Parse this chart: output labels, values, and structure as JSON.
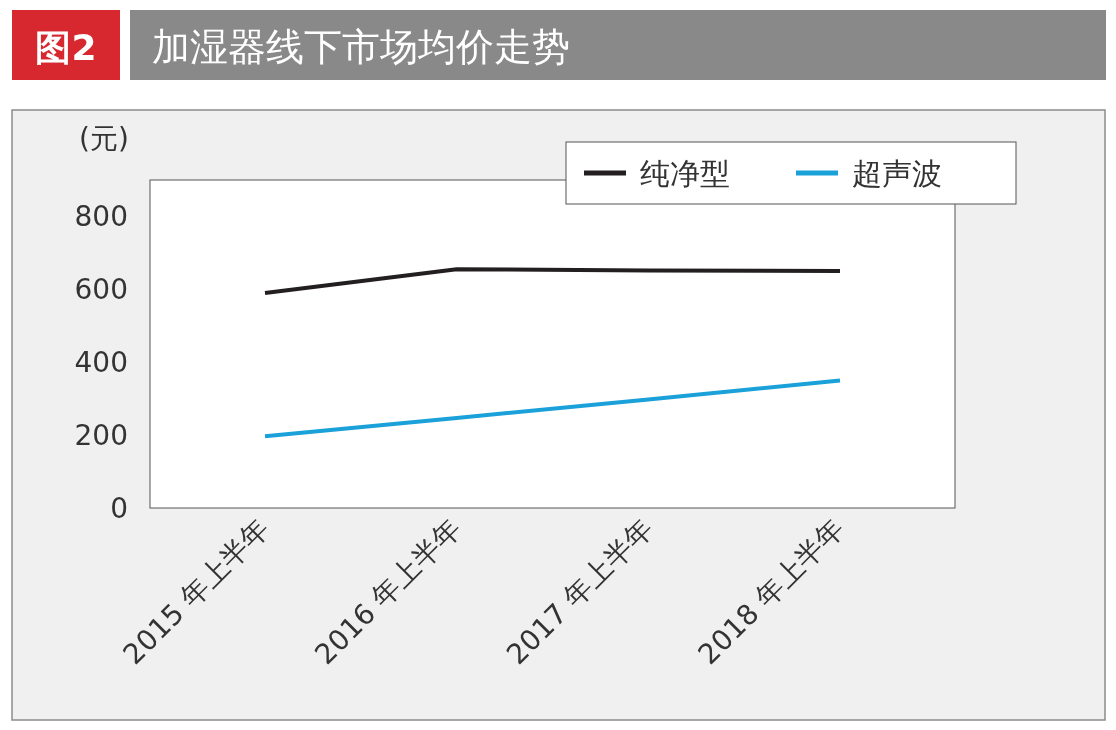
{
  "chart_data": {
    "type": "line",
    "title": "加湿器线下市场均价走势",
    "ylabel": "(元)",
    "annotations": [
      "图2"
    ],
    "categories": [
      "2015 年上半年",
      "2016 年上半年",
      "2017 年上半年",
      "2018 年上半年"
    ],
    "series": [
      {
        "name": "纯净型",
        "color": "#231f20",
        "values": [
          590,
          655,
          652,
          650
        ]
      },
      {
        "name": "超声波",
        "color": "#1ba1d9",
        "values": [
          197,
          247,
          298,
          350
        ]
      }
    ],
    "ylim": [
      0,
      900
    ],
    "yticks": [
      0,
      200,
      400,
      600,
      800
    ],
    "legend": "top right",
    "grid": false,
    "marker": "none",
    "line_style": "solid"
  }
}
